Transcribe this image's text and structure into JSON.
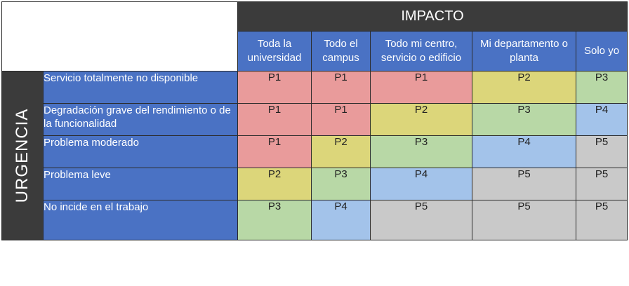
{
  "impact_title": "IMPACTO",
  "urgency_title": "URGENCIA",
  "columns": [
    {
      "label": "Toda la universidad"
    },
    {
      "label": "Todo el campus"
    },
    {
      "label": "Todo mi centro, servicio o edificio"
    },
    {
      "label": "Mi departamento o planta"
    },
    {
      "label": "Solo yo"
    }
  ],
  "rows": [
    {
      "label": "Servicio totalmente no disponible",
      "cells": [
        "P1",
        "P1",
        "P1",
        "P2",
        "P3"
      ]
    },
    {
      "label": "Degradación grave del rendimiento o de la funcionalidad",
      "cells": [
        "P1",
        "P1",
        "P2",
        "P3",
        "P4"
      ]
    },
    {
      "label": "Problema moderado",
      "cells": [
        "P1",
        "P2",
        "P3",
        "P4",
        "P5"
      ]
    },
    {
      "label": "Problema leve",
      "cells": [
        "P2",
        "P3",
        "P4",
        "P5",
        "P5"
      ]
    },
    {
      "label": "No incide en el trabajo",
      "cells": [
        "P3",
        "P4",
        "P5",
        "P5",
        "P5"
      ]
    }
  ],
  "priority_colors": {
    "P1": "#e99b9b",
    "P2": "#dcd67a",
    "P3": "#b8d8a6",
    "P4": "#a3c3ea",
    "P5": "#c9c9c9"
  }
}
